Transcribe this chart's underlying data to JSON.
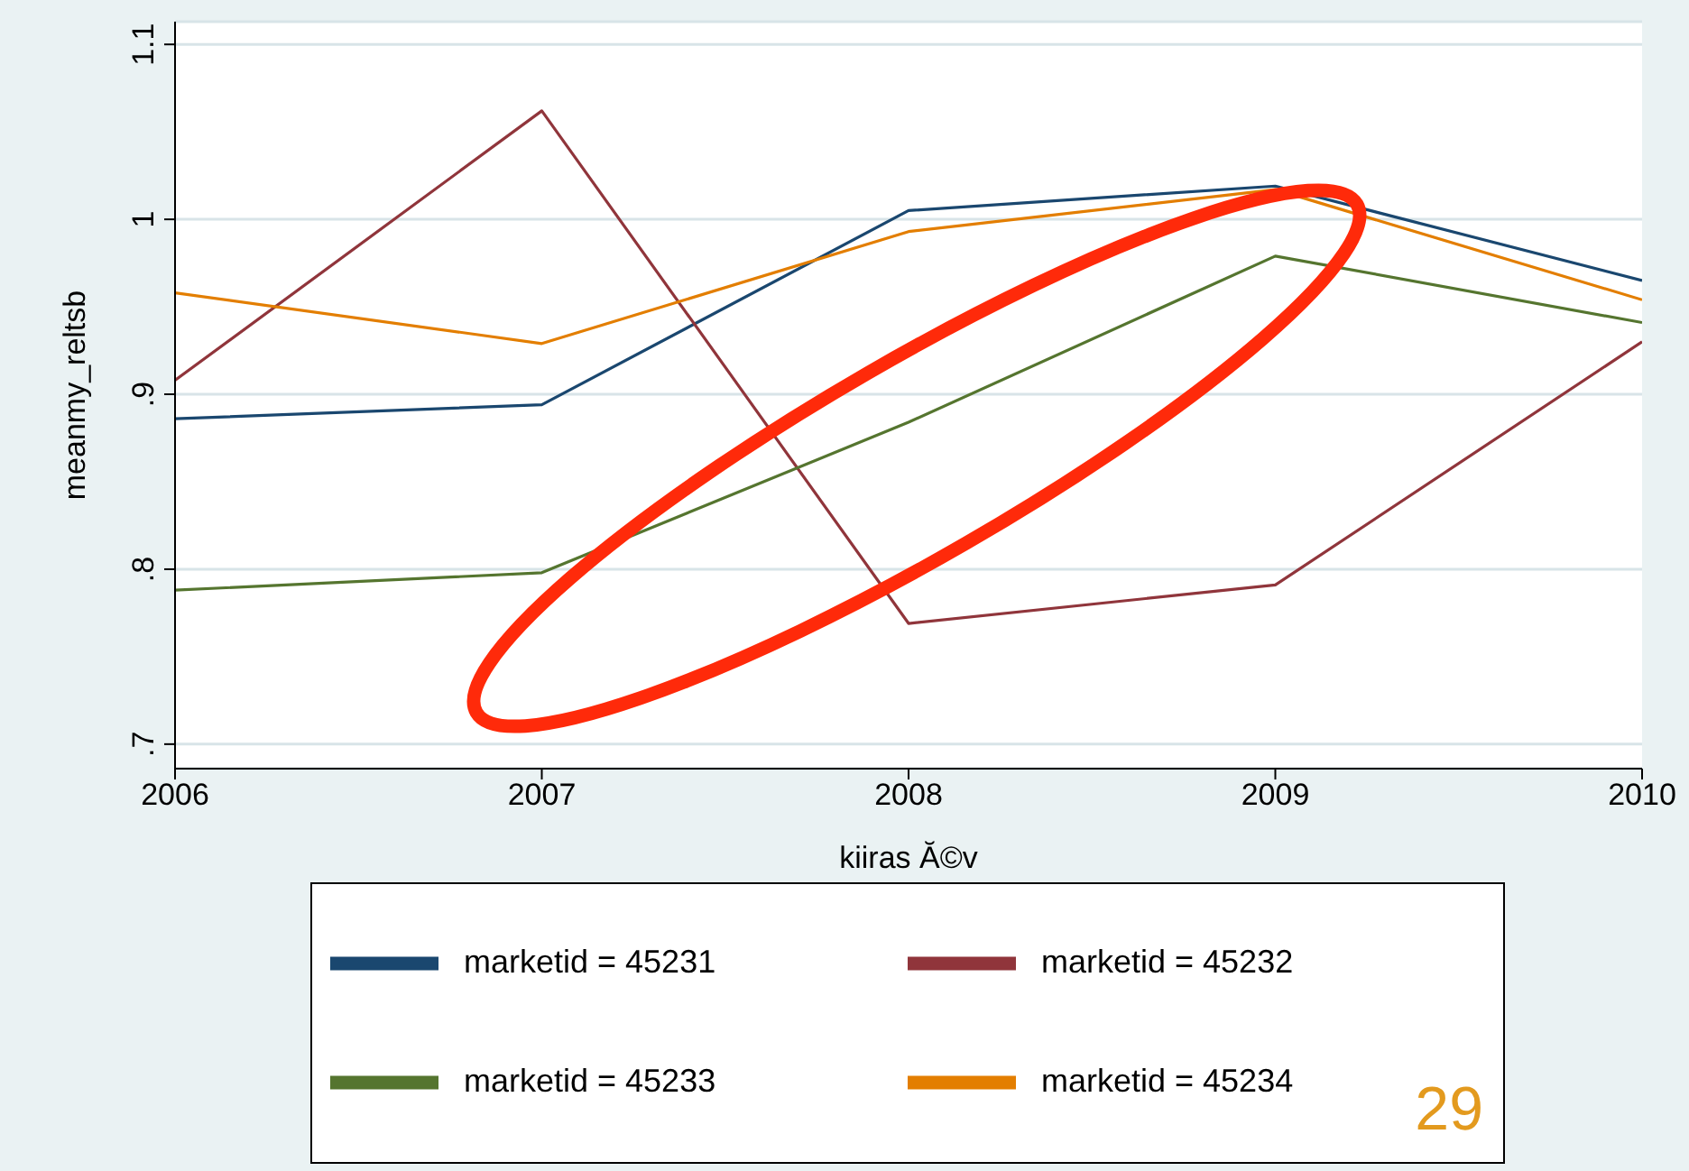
{
  "chart_data": {
    "type": "line",
    "xlabel": "kiiras Ă©v",
    "ylabel": "meanmy_reltsb",
    "x": [
      2006,
      2007,
      2008,
      2009,
      2010
    ],
    "xlim": [
      2006,
      2010
    ],
    "xticks": [
      2006,
      2007,
      2008,
      2009,
      2010
    ],
    "ylim": [
      0.686,
      1.113
    ],
    "yticks": [
      {
        "value": 0.7,
        "label": ".7"
      },
      {
        "value": 0.8,
        "label": ".8"
      },
      {
        "value": 0.9,
        "label": ".9"
      },
      {
        "value": 1,
        "label": "1"
      },
      {
        "value": 1.1,
        "label": "1.1"
      }
    ],
    "series": [
      {
        "name": "marketid = 45231",
        "color": "#1a476f",
        "values": [
          0.886,
          0.894,
          1.005,
          1.019,
          0.965
        ]
      },
      {
        "name": "marketid = 45232",
        "color": "#90353b",
        "values": [
          0.908,
          1.062,
          0.769,
          0.791,
          0.93
        ]
      },
      {
        "name": "marketid = 45233",
        "color": "#55752f",
        "values": [
          0.788,
          0.798,
          0.884,
          0.979,
          0.941
        ]
      },
      {
        "name": "marketid = 45234",
        "color": "#e37e00",
        "values": [
          0.958,
          0.929,
          0.993,
          1.017,
          0.954
        ]
      }
    ],
    "grid": "y",
    "legend": "bottom",
    "marker": "none",
    "line_style": "solid",
    "annotations": [
      "29"
    ]
  }
}
